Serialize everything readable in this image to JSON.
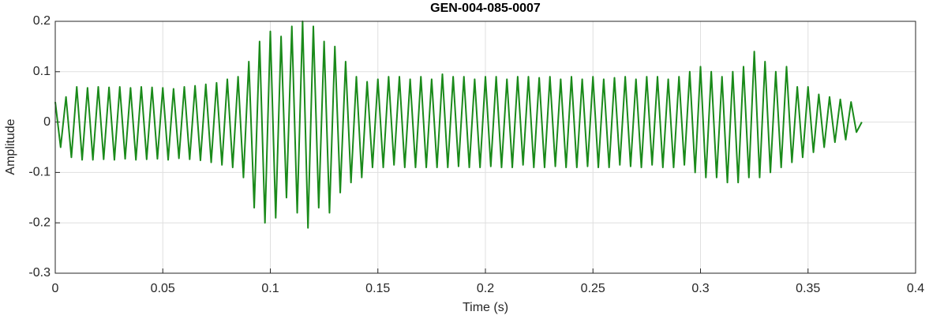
{
  "chart_data": {
    "type": "line",
    "title": "GEN-004-085-0007",
    "x_label": "Time (s)",
    "y_label": "Amplitude",
    "xlim": [
      0,
      0.4
    ],
    "ylim": [
      -0.3,
      0.2
    ],
    "xticks": [
      0,
      0.05,
      0.1,
      0.15,
      0.2,
      0.25,
      0.3,
      0.35,
      0.4
    ],
    "yticks": [
      -0.3,
      -0.2,
      -0.1,
      0,
      0.1,
      0.2
    ],
    "grid": true,
    "x": [
      0,
      0.0025,
      0.005,
      0.0075,
      0.01,
      0.0125,
      0.015,
      0.0175,
      0.02,
      0.0225,
      0.025,
      0.0275,
      0.03,
      0.0325,
      0.035,
      0.0375,
      0.04,
      0.0425,
      0.045,
      0.0475,
      0.05,
      0.0525,
      0.055,
      0.0575,
      0.06,
      0.0625,
      0.065,
      0.0675,
      0.07,
      0.0725,
      0.075,
      0.0775,
      0.08,
      0.0825,
      0.085,
      0.0875,
      0.09,
      0.0925,
      0.095,
      0.0975,
      0.1,
      0.1025,
      0.105,
      0.1075,
      0.11,
      0.1125,
      0.115,
      0.1175,
      0.12,
      0.1225,
      0.125,
      0.1275,
      0.13,
      0.1325,
      0.135,
      0.1375,
      0.14,
      0.1425,
      0.145,
      0.1475,
      0.15,
      0.1525,
      0.155,
      0.1575,
      0.16,
      0.1625,
      0.165,
      0.1675,
      0.17,
      0.1725,
      0.175,
      0.1775,
      0.18,
      0.1825,
      0.185,
      0.1875,
      0.19,
      0.1925,
      0.195,
      0.1975,
      0.2,
      0.2025,
      0.205,
      0.2075,
      0.21,
      0.2125,
      0.215,
      0.2175,
      0.22,
      0.2225,
      0.225,
      0.2275,
      0.23,
      0.2325,
      0.235,
      0.2375,
      0.24,
      0.2425,
      0.245,
      0.2475,
      0.25,
      0.2525,
      0.255,
      0.2575,
      0.26,
      0.2625,
      0.265,
      0.2675,
      0.27,
      0.2725,
      0.275,
      0.2775,
      0.28,
      0.2825,
      0.285,
      0.2875,
      0.29,
      0.2925,
      0.295,
      0.2975,
      0.3,
      0.3025,
      0.305,
      0.3075,
      0.31,
      0.3125,
      0.315,
      0.3175,
      0.32,
      0.3225,
      0.325,
      0.3275,
      0.33,
      0.3325,
      0.335,
      0.3375,
      0.34,
      0.3425,
      0.345,
      0.3475,
      0.35,
      0.3525,
      0.355,
      0.3575,
      0.36,
      0.3625,
      0.365,
      0.3675,
      0.37,
      0.3725,
      0.375
    ],
    "series": [
      {
        "color": "#1a8a1a",
        "values": [
          0.04,
          -0.05,
          0.05,
          -0.07,
          0.07,
          -0.075,
          0.068,
          -0.075,
          0.07,
          -0.074,
          0.069,
          -0.075,
          0.07,
          -0.073,
          0.068,
          -0.075,
          0.07,
          -0.074,
          0.069,
          -0.073,
          0.068,
          -0.075,
          0.066,
          -0.072,
          0.07,
          -0.074,
          0.072,
          -0.076,
          0.075,
          -0.08,
          0.078,
          -0.085,
          0.085,
          -0.09,
          0.09,
          -0.11,
          0.12,
          -0.17,
          0.16,
          -0.2,
          0.18,
          -0.19,
          0.17,
          -0.15,
          0.19,
          -0.18,
          0.2,
          -0.21,
          0.19,
          -0.17,
          0.16,
          -0.18,
          0.15,
          -0.14,
          0.12,
          -0.12,
          0.09,
          -0.11,
          0.08,
          -0.09,
          0.085,
          -0.09,
          0.09,
          -0.085,
          0.09,
          -0.09,
          0.085,
          -0.09,
          0.09,
          -0.09,
          0.085,
          -0.09,
          0.095,
          -0.09,
          0.09,
          -0.088,
          0.09,
          -0.09,
          0.085,
          -0.09,
          0.09,
          -0.088,
          0.09,
          -0.09,
          0.085,
          -0.09,
          0.09,
          -0.085,
          0.09,
          -0.09,
          0.088,
          -0.09,
          0.09,
          -0.088,
          0.085,
          -0.09,
          0.09,
          -0.09,
          0.085,
          -0.088,
          0.09,
          -0.09,
          0.085,
          -0.09,
          0.088,
          -0.085,
          0.09,
          -0.088,
          0.085,
          -0.09,
          0.09,
          -0.085,
          0.09,
          -0.09,
          0.085,
          -0.09,
          0.09,
          -0.085,
          0.1,
          -0.1,
          0.11,
          -0.11,
          0.1,
          -0.11,
          0.09,
          -0.12,
          0.1,
          -0.12,
          0.11,
          -0.11,
          0.14,
          -0.11,
          0.12,
          -0.1,
          0.1,
          -0.09,
          0.11,
          -0.08,
          0.07,
          -0.07,
          0.07,
          -0.06,
          0.055,
          -0.05,
          0.05,
          -0.04,
          0.045,
          -0.035,
          0.04,
          -0.02,
          0
        ]
      }
    ]
  }
}
